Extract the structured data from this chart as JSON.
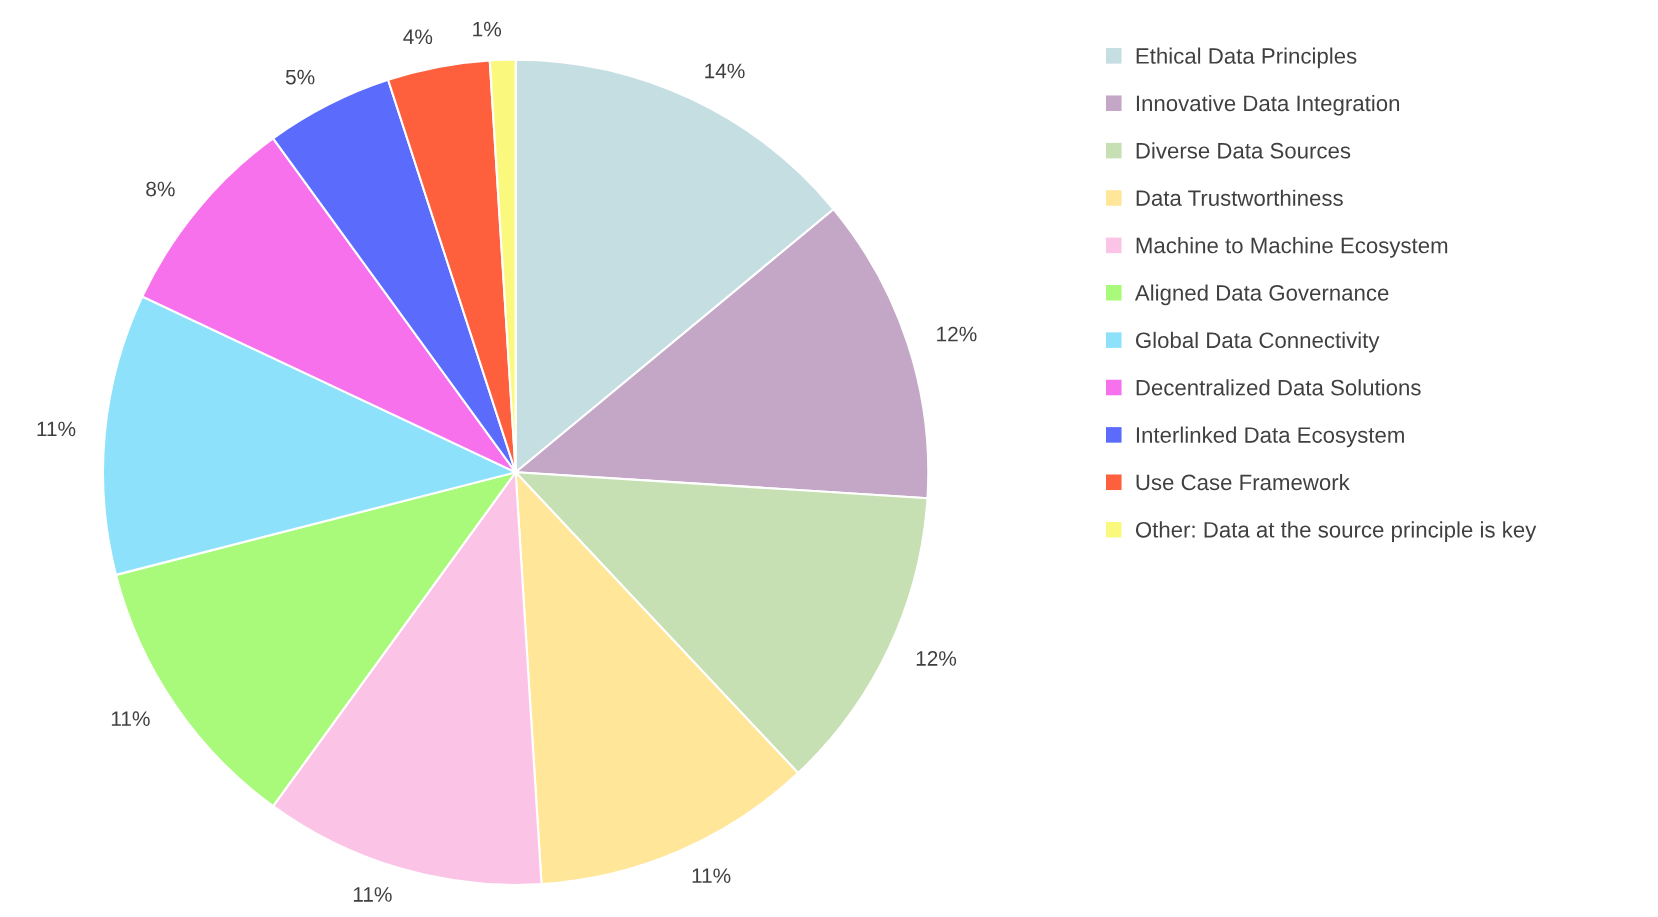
{
  "chart_data": {
    "type": "pie",
    "categories": [
      "Ethical Data Principles",
      "Innovative Data Integration",
      "Diverse Data Sources",
      "Data Trustworthiness",
      "Machine to Machine Ecosystem",
      "Aligned Data Governance",
      "Global Data Connectivity",
      "Decentralized Data Solutions",
      "Interlinked Data Ecosystem",
      "Use Case Framework",
      "Other: Data at the source principle is key"
    ],
    "values": [
      14,
      12,
      12,
      11,
      11,
      11,
      11,
      8,
      5,
      4,
      1
    ],
    "colors": [
      "#c5dee2",
      "#c4a7c7",
      "#c6e0b4",
      "#ffe699",
      "#fbc4e6",
      "#a9f97a",
      "#8de1fb",
      "#f771ec",
      "#5b6cfd",
      "#fe5f3c",
      "#faf97d"
    ],
    "value_labels": [
      "14%",
      "12%",
      "12%",
      "11%",
      "11%",
      "11%",
      "11%",
      "8%",
      "5%",
      "4%",
      "1%"
    ],
    "legend": "right"
  }
}
